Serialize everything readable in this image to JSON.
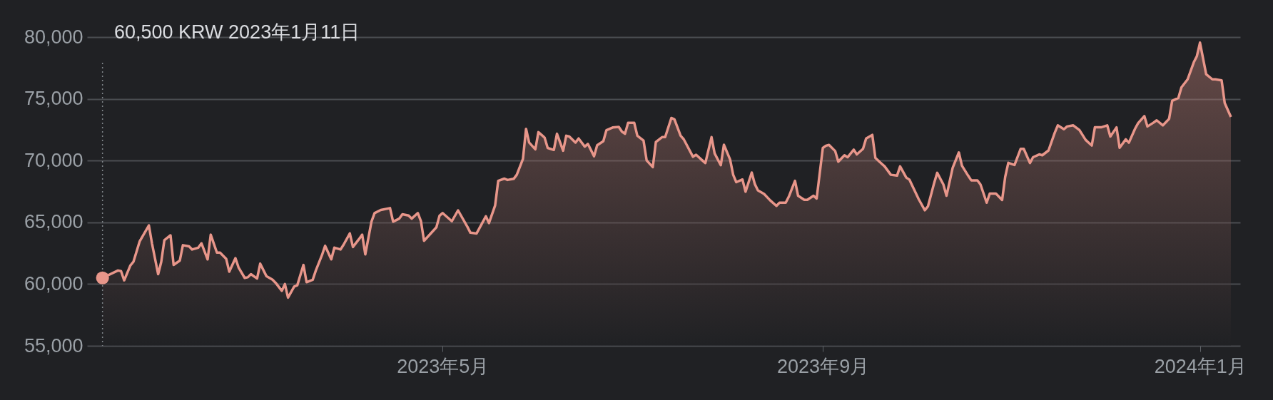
{
  "chart_data": {
    "type": "area",
    "x": [
      "2023-01-11",
      "2023-01-16",
      "2023-01-17",
      "2023-01-18",
      "2023-01-20",
      "2023-01-21",
      "2023-01-23",
      "2023-01-26",
      "2023-01-27",
      "2023-01-29",
      "2023-01-30",
      "2023-01-31",
      "2023-02-02",
      "2023-02-03",
      "2023-02-05",
      "2023-02-06",
      "2023-02-08",
      "2023-02-09",
      "2023-02-11",
      "2023-02-12",
      "2023-02-14",
      "2023-02-15",
      "2023-02-17",
      "2023-02-18",
      "2023-02-20",
      "2023-02-21",
      "2023-02-23",
      "2023-02-24",
      "2023-02-26",
      "2023-02-27",
      "2023-02-28",
      "2023-03-02",
      "2023-03-03",
      "2023-03-05",
      "2023-03-07",
      "2023-03-08",
      "2023-03-10",
      "2023-03-11",
      "2023-03-12",
      "2023-03-14",
      "2023-03-15",
      "2023-03-17",
      "2023-03-18",
      "2023-03-20",
      "2023-03-21",
      "2023-03-23",
      "2023-03-24",
      "2023-03-26",
      "2023-03-27",
      "2023-03-29",
      "2023-03-30",
      "2023-04-01",
      "2023-04-02",
      "2023-04-04",
      "2023-04-05",
      "2023-04-06",
      "2023-04-08",
      "2023-04-09",
      "2023-04-11",
      "2023-04-14",
      "2023-04-15",
      "2023-04-17",
      "2023-04-18",
      "2023-04-20",
      "2023-04-21",
      "2023-04-23",
      "2023-04-24",
      "2023-04-25",
      "2023-04-29",
      "2023-04-30",
      "2023-05-01",
      "2023-05-04",
      "2023-05-06",
      "2023-05-09",
      "2023-05-10",
      "2023-05-12",
      "2023-05-13",
      "2023-05-15",
      "2023-05-16",
      "2023-05-18",
      "2023-05-19",
      "2023-05-21",
      "2023-05-22",
      "2023-05-24",
      "2023-05-25",
      "2023-05-27",
      "2023-05-28",
      "2023-05-29",
      "2023-05-31",
      "2023-06-01",
      "2023-06-03",
      "2023-06-04",
      "2023-06-06",
      "2023-06-07",
      "2023-06-09",
      "2023-06-10",
      "2023-06-11",
      "2023-06-13",
      "2023-06-14",
      "2023-06-16",
      "2023-06-17",
      "2023-06-19",
      "2023-06-20",
      "2023-06-22",
      "2023-06-23",
      "2023-06-25",
      "2023-06-27",
      "2023-06-28",
      "2023-06-29",
      "2023-06-30",
      "2023-07-02",
      "2023-07-03",
      "2023-07-05",
      "2023-07-06",
      "2023-07-08",
      "2023-07-09",
      "2023-07-11",
      "2023-07-12",
      "2023-07-14",
      "2023-07-15",
      "2023-07-17",
      "2023-07-18",
      "2023-07-21",
      "2023-07-22",
      "2023-07-24",
      "2023-07-25",
      "2023-07-27",
      "2023-07-28",
      "2023-07-30",
      "2023-07-31",
      "2023-08-02",
      "2023-08-03",
      "2023-08-04",
      "2023-08-06",
      "2023-08-07",
      "2023-08-09",
      "2023-08-10",
      "2023-08-11",
      "2023-08-13",
      "2023-08-15",
      "2023-08-17",
      "2023-08-18",
      "2023-08-20",
      "2023-08-21",
      "2023-08-23",
      "2023-08-24",
      "2023-08-26",
      "2023-08-27",
      "2023-08-29",
      "2023-08-30",
      "2023-09-01",
      "2023-09-02",
      "2023-09-03",
      "2023-09-05",
      "2023-09-06",
      "2023-09-08",
      "2023-09-09",
      "2023-09-11",
      "2023-09-12",
      "2023-09-14",
      "2023-09-15",
      "2023-09-17",
      "2023-09-18",
      "2023-09-20",
      "2023-09-21",
      "2023-09-23",
      "2023-09-25",
      "2023-09-26",
      "2023-09-28",
      "2023-09-29",
      "2023-10-02",
      "2023-10-04",
      "2023-10-05",
      "2023-10-07",
      "2023-10-08",
      "2023-10-10",
      "2023-10-11",
      "2023-10-13",
      "2023-10-15",
      "2023-10-16",
      "2023-10-18",
      "2023-10-19",
      "2023-10-21",
      "2023-10-22",
      "2023-10-24",
      "2023-10-25",
      "2023-10-27",
      "2023-10-29",
      "2023-10-30",
      "2023-10-31",
      "2023-11-02",
      "2023-11-04",
      "2023-11-05",
      "2023-11-07",
      "2023-11-08",
      "2023-11-10",
      "2023-11-11",
      "2023-11-13",
      "2023-11-15",
      "2023-11-16",
      "2023-11-18",
      "2023-11-19",
      "2023-11-21",
      "2023-11-23",
      "2023-11-25",
      "2023-11-27",
      "2023-11-28",
      "2023-11-30",
      "2023-12-02",
      "2023-12-03",
      "2023-12-05",
      "2023-12-06",
      "2023-12-08",
      "2023-12-09",
      "2023-12-11",
      "2023-12-12",
      "2023-12-14",
      "2023-12-15",
      "2023-12-17",
      "2023-12-18",
      "2023-12-20",
      "2023-12-22",
      "2023-12-23",
      "2023-12-25",
      "2023-12-26",
      "2023-12-28",
      "2023-12-30",
      "2023-12-31",
      "2024-01-01",
      "2024-01-03",
      "2024-01-05",
      "2024-01-06",
      "2024-01-08",
      "2024-01-09",
      "2024-01-11"
    ],
    "series": [
      {
        "color": "#e8968a",
        "values": [
          60500,
          61100,
          61050,
          60300,
          61500,
          61800,
          63450,
          64750,
          63300,
          60800,
          61800,
          63550,
          63950,
          61550,
          61900,
          63150,
          63050,
          62800,
          62950,
          63300,
          62000,
          64000,
          62550,
          62550,
          62050,
          61000,
          62100,
          61350,
          60500,
          60550,
          60800,
          60450,
          61650,
          60650,
          60350,
          60100,
          59450,
          60000,
          58900,
          59800,
          59900,
          61550,
          60150,
          60350,
          61100,
          62350,
          63100,
          62000,
          62950,
          62800,
          63200,
          64100,
          63000,
          63650,
          64000,
          62400,
          65050,
          65750,
          66000,
          66150,
          65050,
          65300,
          65650,
          65550,
          65300,
          65750,
          65100,
          63500,
          64600,
          65530,
          65750,
          65090,
          65970,
          64650,
          64160,
          64100,
          64560,
          65490,
          64940,
          66370,
          68360,
          68540,
          68430,
          68520,
          68850,
          70130,
          72570,
          71460,
          70910,
          72300,
          71860,
          71020,
          70860,
          72170,
          70800,
          72010,
          71950,
          71460,
          71790,
          71130,
          71350,
          70350,
          71240,
          71570,
          72460,
          72680,
          72720,
          72350,
          72170,
          73050,
          73050,
          72010,
          71620,
          70020,
          69470,
          71510,
          71900,
          71900,
          73450,
          73340,
          72010,
          71730,
          70310,
          70470,
          70020,
          69800,
          71900,
          70580,
          69620,
          71280,
          70090,
          68850,
          68250,
          68470,
          67480,
          69030,
          68100,
          67590,
          67300,
          66770,
          66330,
          66590,
          66590,
          67080,
          68360,
          67150,
          66820,
          66820,
          67150,
          66930,
          71020,
          71200,
          71270,
          70770,
          69910,
          70430,
          70270,
          70880,
          70500,
          70950,
          71790,
          72080,
          70210,
          69750,
          69530,
          68850,
          68780,
          69530,
          68620,
          68460,
          66880,
          65980,
          66290,
          68170,
          69010,
          68060,
          67150,
          69410,
          70660,
          69590,
          68780,
          68400,
          68400,
          68060,
          66590,
          67330,
          67330,
          66810,
          68690,
          69820,
          69640,
          70950,
          70950,
          69800,
          70270,
          70500,
          70430,
          70820,
          72240,
          72850,
          72540,
          72760,
          72850,
          72470,
          71680,
          71220,
          72690,
          72690,
          72850,
          71950,
          72690,
          71040,
          71720,
          71450,
          72580,
          73030,
          73600,
          72760,
          73080,
          73260,
          72850,
          73370,
          74840,
          75070,
          75930,
          76580,
          77960,
          78460,
          79550,
          76990,
          76580,
          76580,
          76490,
          74660,
          73530
        ]
      }
    ],
    "xlim": [
      "2023-01-06",
      "2024-01-14"
    ],
    "xticks": [
      {
        "value": "2023-05-01",
        "label": "2023年5月"
      },
      {
        "value": "2023-09-01",
        "label": "2023年9月"
      },
      {
        "value": "2024-01-01",
        "label": "2024年1月"
      }
    ],
    "ylim": [
      55000,
      80000
    ],
    "yticks": [
      {
        "value": 55000,
        "label": "55,000"
      },
      {
        "value": 60000,
        "label": "60,000"
      },
      {
        "value": 65000,
        "label": "65,000"
      },
      {
        "value": 70000,
        "label": "70,000"
      },
      {
        "value": 75000,
        "label": "75,000"
      },
      {
        "value": 80000,
        "label": "80,000"
      }
    ],
    "grid": "y",
    "annotations": [
      "60,500 KRW  2023年1月11日"
    ],
    "ref_lines": [
      {
        "axis": "x",
        "value": "2023-01-11",
        "color": "#80868b",
        "line_style": "dotted"
      }
    ]
  }
}
